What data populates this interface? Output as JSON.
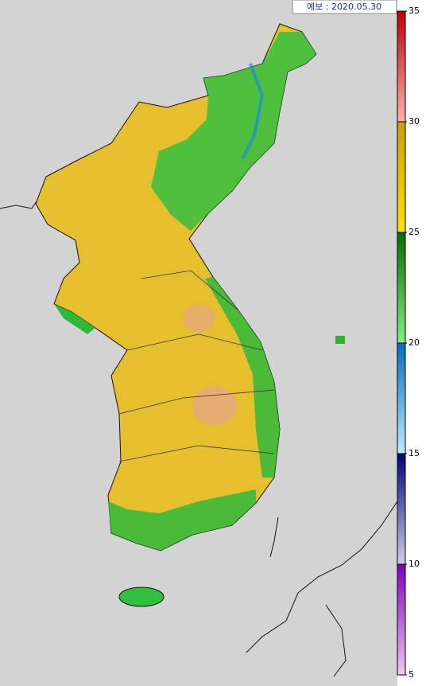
{
  "forecast_label": "예보 : 2020.05.30",
  "colorbar": {
    "lim": [
      5,
      35
    ],
    "ticks": [
      5,
      10,
      15,
      20,
      25,
      30,
      35
    ]
  }
}
